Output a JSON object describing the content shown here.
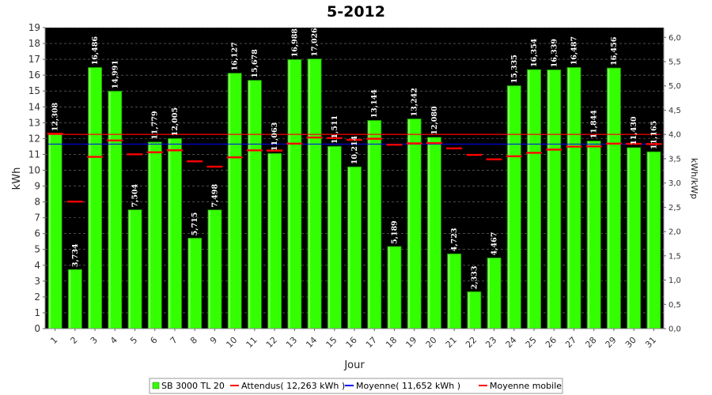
{
  "chart_data": {
    "type": "bar",
    "title": "5-2012",
    "xlabel": "Jour",
    "ylabel": "kWh",
    "y2label": "kWh/kWp",
    "ylim": [
      0,
      19
    ],
    "y2lim": [
      0,
      6.2
    ],
    "yticks": [
      "0",
      "1",
      "2",
      "3",
      "4",
      "5",
      "6",
      "7",
      "8",
      "9",
      "10",
      "11",
      "12",
      "13",
      "14",
      "15",
      "16",
      "17",
      "18",
      "19"
    ],
    "y2ticks": [
      "0,0",
      "0,5",
      "1,0",
      "1,5",
      "2,0",
      "2,5",
      "3,0",
      "3,5",
      "4,0",
      "4,5",
      "5,0",
      "5,5",
      "6,0"
    ],
    "grid": true,
    "legend_position": "bottom",
    "categories": [
      "1",
      "2",
      "3",
      "4",
      "5",
      "6",
      "7",
      "8",
      "9",
      "10",
      "11",
      "12",
      "13",
      "14",
      "15",
      "16",
      "17",
      "18",
      "19",
      "20",
      "21",
      "22",
      "23",
      "24",
      "25",
      "26",
      "27",
      "28",
      "29",
      "30",
      "31"
    ],
    "series": [
      {
        "name": "SB 3000 TL 20",
        "color": "#33ff00",
        "values": [
          12.308,
          3.734,
          16.486,
          14.991,
          7.504,
          11.779,
          12.005,
          5.715,
          7.498,
          16.127,
          15.678,
          11.063,
          16.988,
          17.026,
          11.511,
          10.214,
          13.144,
          5.189,
          13.242,
          12.08,
          4.723,
          2.333,
          4.467,
          15.335,
          16.354,
          16.339,
          16.487,
          11.844,
          16.456,
          11.43,
          11.165
        ],
        "labels": [
          "12,308",
          "3,734",
          "16,486",
          "14,991",
          "7,504",
          "11,779",
          "12,005",
          "5,715",
          "7,498",
          "16,127",
          "15,678",
          "11,063",
          "16,988",
          "17,026",
          "11,511",
          "10,214",
          "13,144",
          "5,189",
          "13,242",
          "12,080",
          "4,723",
          "2,333",
          "4,467",
          "15,335",
          "16,354",
          "16,339",
          "16,487",
          "11,844",
          "16,456",
          "11,430",
          "11,165"
        ]
      },
      {
        "name": "Attendus( 12,263 kWh )",
        "color": "#ff0000",
        "value": 12.263
      },
      {
        "name": "Moyenne( 11,652 kWh )",
        "color": "#0000ff",
        "value": 11.652
      },
      {
        "name": "Moyenne mobile",
        "color": "#ff0000",
        "values": [
          12.308,
          8.021,
          10.843,
          11.88,
          11.004,
          11.133,
          11.258,
          10.565,
          10.224,
          10.814,
          11.255,
          11.239,
          11.681,
          12.063,
          12.027,
          11.914,
          11.987,
          11.609,
          11.694,
          11.714,
          11.381,
          10.97,
          10.688,
          10.882,
          11.101,
          11.302,
          11.494,
          11.506,
          11.677,
          11.668,
          11.652
        ]
      }
    ]
  }
}
